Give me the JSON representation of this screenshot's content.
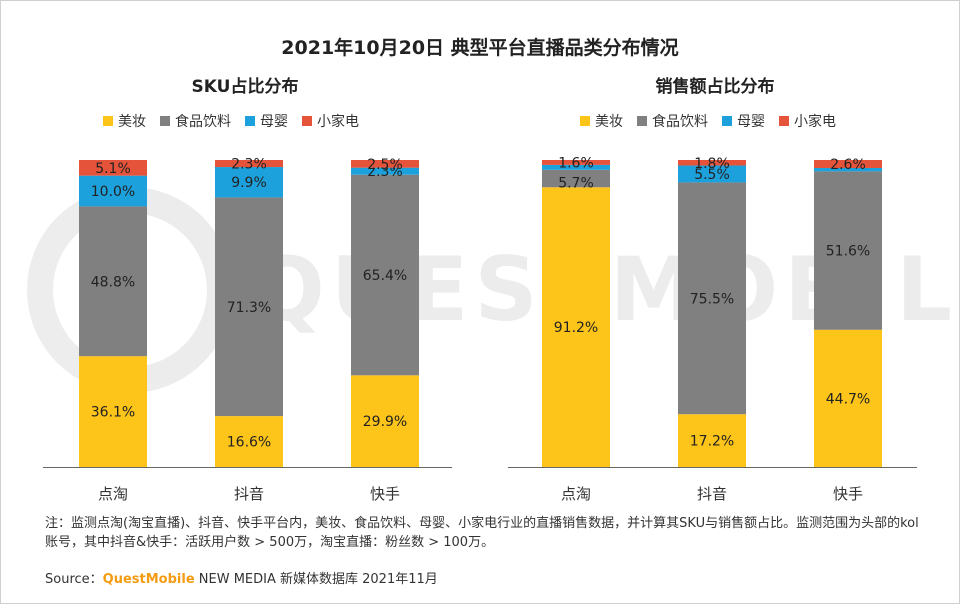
{
  "title": "2021年10月20日 典型平台直播品类分布情况",
  "panels": {
    "left_title": "SKU占比分布",
    "right_title": "销售额占比分布"
  },
  "legend": [
    "美妆",
    "食品饮料",
    "母婴",
    "小家电"
  ],
  "colors": {
    "美妆": "#FDC41A",
    "食品饮料": "#808080",
    "母婴": "#1DA1DC",
    "小家电": "#E5533A"
  },
  "watermark": "QUESTMOBILE",
  "chart_data": [
    {
      "type": "bar",
      "stacked": true,
      "title": "SKU占比分布",
      "categories": [
        "点淘",
        "抖音",
        "快手"
      ],
      "ylim": [
        0,
        100
      ],
      "series": [
        {
          "name": "美妆",
          "values": [
            36.1,
            16.6,
            29.9
          ]
        },
        {
          "name": "食品饮料",
          "values": [
            48.8,
            71.3,
            65.4
          ]
        },
        {
          "name": "母婴",
          "values": [
            10.0,
            9.9,
            2.3
          ]
        },
        {
          "name": "小家电",
          "values": [
            5.1,
            2.3,
            2.5
          ]
        }
      ]
    },
    {
      "type": "bar",
      "stacked": true,
      "title": "销售额占比分布",
      "categories": [
        "点淘",
        "抖音",
        "快手"
      ],
      "ylim": [
        0,
        100
      ],
      "series": [
        {
          "name": "美妆",
          "values": [
            91.2,
            17.2,
            44.7
          ]
        },
        {
          "name": "食品饮料",
          "values": [
            5.7,
            75.5,
            51.6
          ]
        },
        {
          "name": "母婴",
          "values": [
            1.6,
            5.5,
            1.1
          ]
        },
        {
          "name": "小家电",
          "values": [
            1.6,
            1.8,
            2.6
          ]
        }
      ],
      "labels": [
        [
          "91.2%",
          "5.7%",
          "",
          "1.6%"
        ],
        [
          "17.2%",
          "75.5%",
          "5.5%",
          "1.8%"
        ],
        [
          "44.7%",
          "51.6%",
          "",
          "2.6%"
        ]
      ]
    }
  ],
  "note": "注：监测点淘(淘宝直播)、抖音、快手平台内，美妆、食品饮料、母婴、小家电行业的直播销售数据，并计算其SKU与销售额占比。监测范围为头部的kol账号，其中抖音&快手：活跃用户数 > 500万，淘宝直播：粉丝数 > 100万。",
  "source": {
    "prefix": "Source：",
    "brand": "QuestMobile",
    "suffix": " NEW MEDIA 新媒体数据库 2021年11月"
  }
}
